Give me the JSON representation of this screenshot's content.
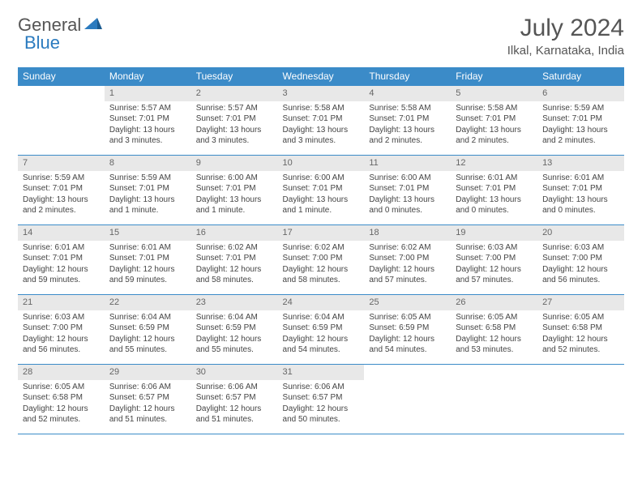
{
  "brand": {
    "name_a": "General",
    "name_b": "Blue"
  },
  "title": "July 2024",
  "location": "Ilkal, Karnataka, India",
  "colors": {
    "header_bg": "#3b8bc8",
    "header_fg": "#ffffff",
    "daynum_bg": "#e8e8e8",
    "daynum_fg": "#666666",
    "text": "#444444",
    "rule": "#3b8bc8",
    "brand_gray": "#555555",
    "brand_blue": "#2b7bbf",
    "page_bg": "#ffffff"
  },
  "typography": {
    "base_font": "Arial",
    "title_size_pt": 22,
    "location_size_pt": 11,
    "header_size_pt": 9,
    "body_size_pt": 7.5
  },
  "days_of_week": [
    "Sunday",
    "Monday",
    "Tuesday",
    "Wednesday",
    "Thursday",
    "Friday",
    "Saturday"
  ],
  "first_weekday_index": 1,
  "days": [
    {
      "n": 1,
      "sunrise": "5:57 AM",
      "sunset": "7:01 PM",
      "daylight": "13 hours and 3 minutes."
    },
    {
      "n": 2,
      "sunrise": "5:57 AM",
      "sunset": "7:01 PM",
      "daylight": "13 hours and 3 minutes."
    },
    {
      "n": 3,
      "sunrise": "5:58 AM",
      "sunset": "7:01 PM",
      "daylight": "13 hours and 3 minutes."
    },
    {
      "n": 4,
      "sunrise": "5:58 AM",
      "sunset": "7:01 PM",
      "daylight": "13 hours and 2 minutes."
    },
    {
      "n": 5,
      "sunrise": "5:58 AM",
      "sunset": "7:01 PM",
      "daylight": "13 hours and 2 minutes."
    },
    {
      "n": 6,
      "sunrise": "5:59 AM",
      "sunset": "7:01 PM",
      "daylight": "13 hours and 2 minutes."
    },
    {
      "n": 7,
      "sunrise": "5:59 AM",
      "sunset": "7:01 PM",
      "daylight": "13 hours and 2 minutes."
    },
    {
      "n": 8,
      "sunrise": "5:59 AM",
      "sunset": "7:01 PM",
      "daylight": "13 hours and 1 minute."
    },
    {
      "n": 9,
      "sunrise": "6:00 AM",
      "sunset": "7:01 PM",
      "daylight": "13 hours and 1 minute."
    },
    {
      "n": 10,
      "sunrise": "6:00 AM",
      "sunset": "7:01 PM",
      "daylight": "13 hours and 1 minute."
    },
    {
      "n": 11,
      "sunrise": "6:00 AM",
      "sunset": "7:01 PM",
      "daylight": "13 hours and 0 minutes."
    },
    {
      "n": 12,
      "sunrise": "6:01 AM",
      "sunset": "7:01 PM",
      "daylight": "13 hours and 0 minutes."
    },
    {
      "n": 13,
      "sunrise": "6:01 AM",
      "sunset": "7:01 PM",
      "daylight": "13 hours and 0 minutes."
    },
    {
      "n": 14,
      "sunrise": "6:01 AM",
      "sunset": "7:01 PM",
      "daylight": "12 hours and 59 minutes."
    },
    {
      "n": 15,
      "sunrise": "6:01 AM",
      "sunset": "7:01 PM",
      "daylight": "12 hours and 59 minutes."
    },
    {
      "n": 16,
      "sunrise": "6:02 AM",
      "sunset": "7:01 PM",
      "daylight": "12 hours and 58 minutes."
    },
    {
      "n": 17,
      "sunrise": "6:02 AM",
      "sunset": "7:00 PM",
      "daylight": "12 hours and 58 minutes."
    },
    {
      "n": 18,
      "sunrise": "6:02 AM",
      "sunset": "7:00 PM",
      "daylight": "12 hours and 57 minutes."
    },
    {
      "n": 19,
      "sunrise": "6:03 AM",
      "sunset": "7:00 PM",
      "daylight": "12 hours and 57 minutes."
    },
    {
      "n": 20,
      "sunrise": "6:03 AM",
      "sunset": "7:00 PM",
      "daylight": "12 hours and 56 minutes."
    },
    {
      "n": 21,
      "sunrise": "6:03 AM",
      "sunset": "7:00 PM",
      "daylight": "12 hours and 56 minutes."
    },
    {
      "n": 22,
      "sunrise": "6:04 AM",
      "sunset": "6:59 PM",
      "daylight": "12 hours and 55 minutes."
    },
    {
      "n": 23,
      "sunrise": "6:04 AM",
      "sunset": "6:59 PM",
      "daylight": "12 hours and 55 minutes."
    },
    {
      "n": 24,
      "sunrise": "6:04 AM",
      "sunset": "6:59 PM",
      "daylight": "12 hours and 54 minutes."
    },
    {
      "n": 25,
      "sunrise": "6:05 AM",
      "sunset": "6:59 PM",
      "daylight": "12 hours and 54 minutes."
    },
    {
      "n": 26,
      "sunrise": "6:05 AM",
      "sunset": "6:58 PM",
      "daylight": "12 hours and 53 minutes."
    },
    {
      "n": 27,
      "sunrise": "6:05 AM",
      "sunset": "6:58 PM",
      "daylight": "12 hours and 52 minutes."
    },
    {
      "n": 28,
      "sunrise": "6:05 AM",
      "sunset": "6:58 PM",
      "daylight": "12 hours and 52 minutes."
    },
    {
      "n": 29,
      "sunrise": "6:06 AM",
      "sunset": "6:57 PM",
      "daylight": "12 hours and 51 minutes."
    },
    {
      "n": 30,
      "sunrise": "6:06 AM",
      "sunset": "6:57 PM",
      "daylight": "12 hours and 51 minutes."
    },
    {
      "n": 31,
      "sunrise": "6:06 AM",
      "sunset": "6:57 PM",
      "daylight": "12 hours and 50 minutes."
    }
  ],
  "labels": {
    "sunrise": "Sunrise:",
    "sunset": "Sunset:",
    "daylight": "Daylight:"
  }
}
